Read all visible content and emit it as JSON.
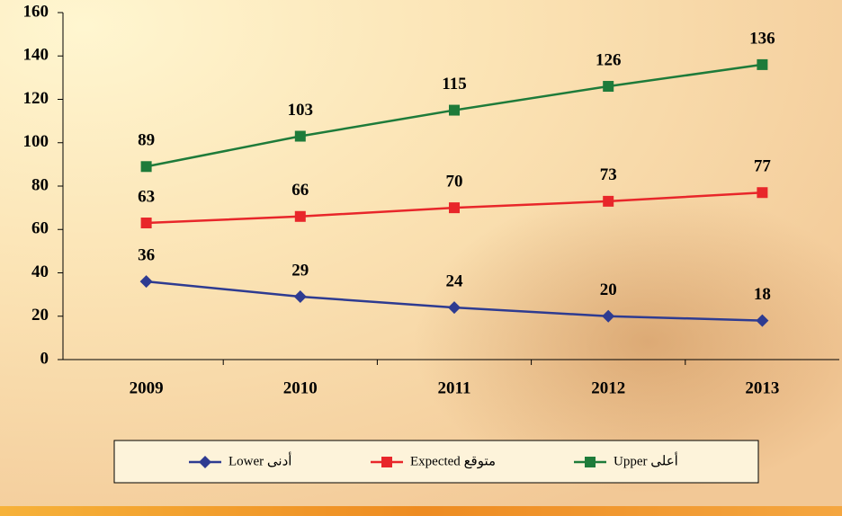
{
  "chart_data": {
    "type": "line",
    "categories": [
      "2009",
      "2010",
      "2011",
      "2012",
      "2013"
    ],
    "series": [
      {
        "name": "Lower أدنى",
        "color": "#2e3b91",
        "marker": "diamond",
        "values": [
          36,
          29,
          24,
          20,
          18
        ]
      },
      {
        "name": "Expected متوقع",
        "color": "#e8262a",
        "marker": "square",
        "values": [
          63,
          66,
          70,
          73,
          77
        ]
      },
      {
        "name": "Upper أعلى",
        "color": "#1e7b3a",
        "marker": "square",
        "values": [
          89,
          103,
          115,
          126,
          136
        ]
      }
    ],
    "ylim": [
      0,
      160
    ],
    "yticks": [
      0,
      20,
      40,
      60,
      80,
      100,
      120,
      140,
      160
    ],
    "grid": false,
    "legend": "bottom"
  }
}
